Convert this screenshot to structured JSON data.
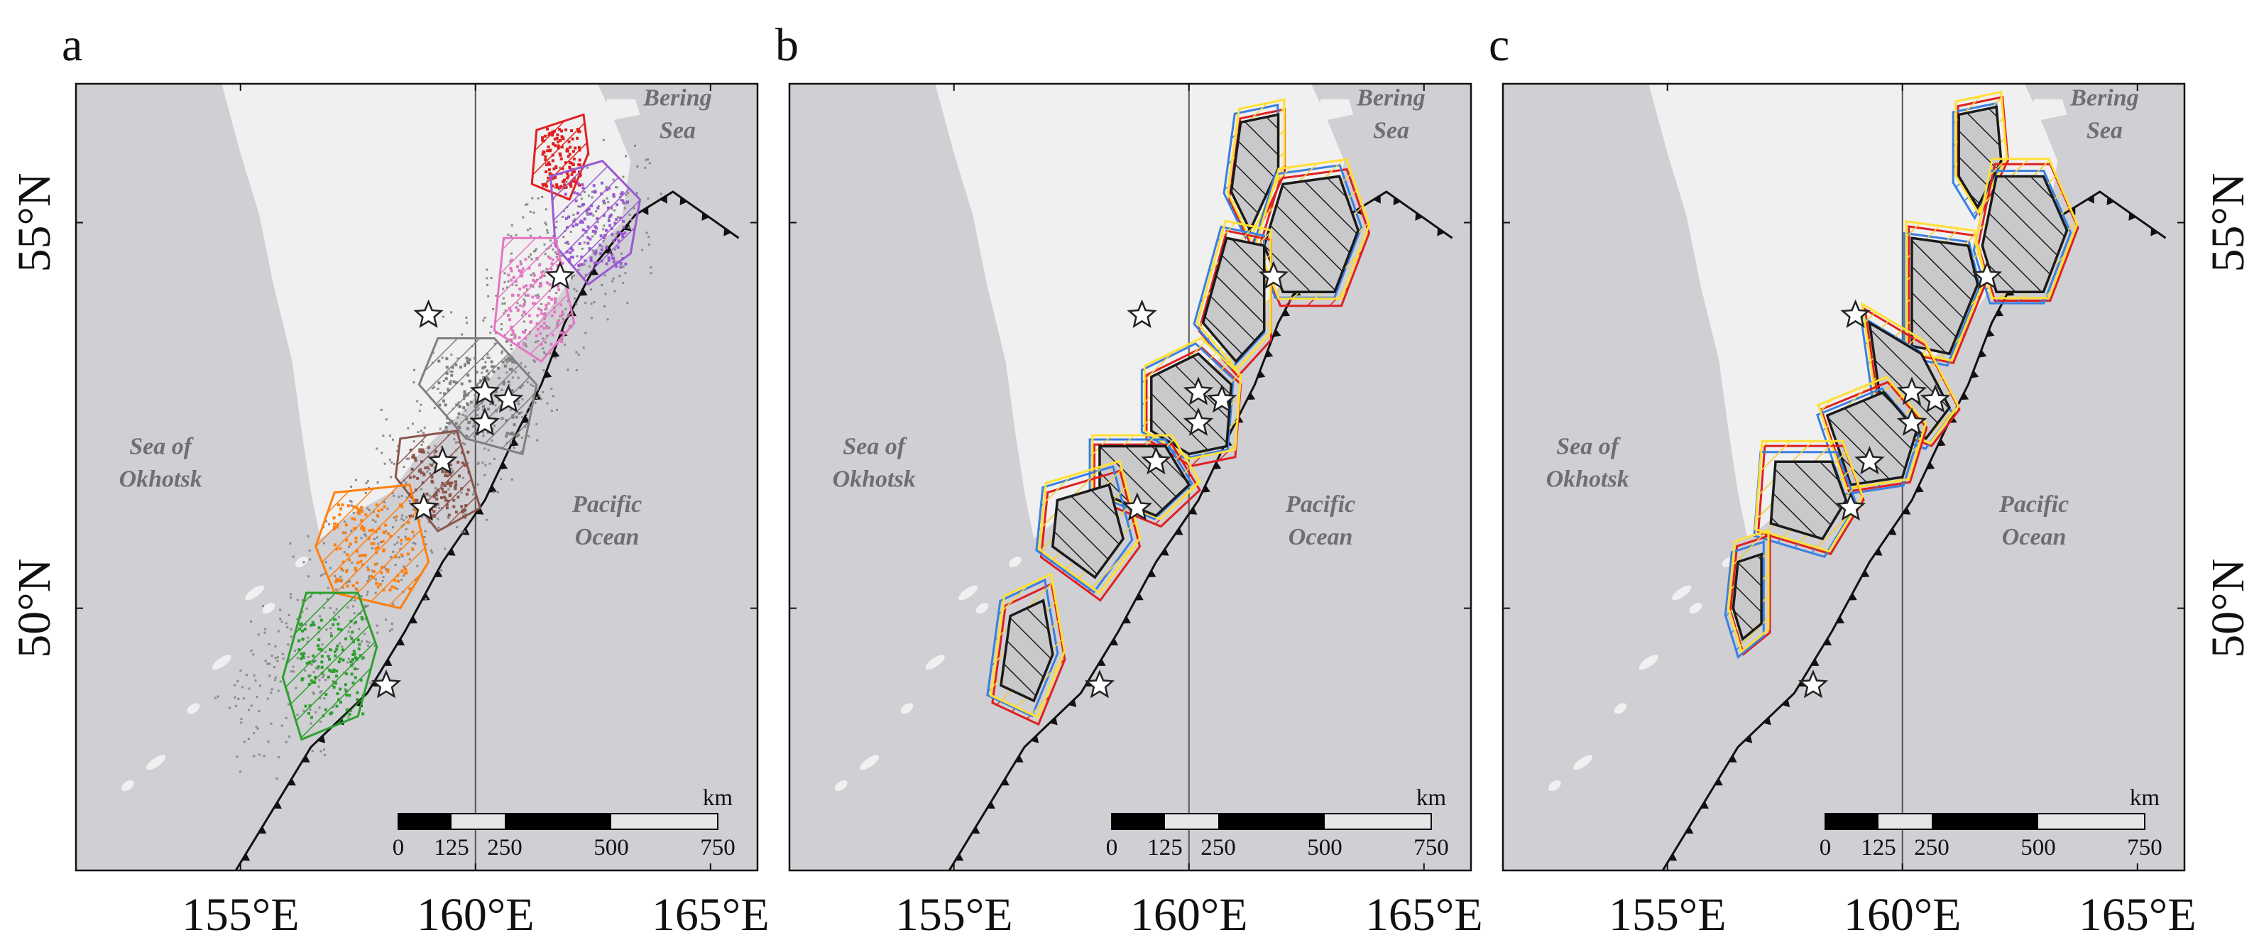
{
  "figure": {
    "panels": [
      {
        "id": "a",
        "letter": "a"
      },
      {
        "id": "b",
        "letter": "b"
      },
      {
        "id": "c",
        "letter": "c"
      }
    ],
    "longitude_ticks": [
      "155°E",
      "160°E",
      "165°E"
    ],
    "latitude_ticks": [
      "55°N",
      "50°N"
    ],
    "places": {
      "bering_line1": "Bering",
      "bering_line2": "Sea",
      "okhotsk_line1": "Sea of",
      "okhotsk_line2": "Okhotsk",
      "pacific_line1": "Pacific",
      "pacific_line2": "Ocean"
    },
    "scale_bar": {
      "unit": "km",
      "labels": [
        "0",
        "125",
        "250",
        "500",
        "750"
      ]
    },
    "extent": {
      "lon": [
        151.5,
        166
      ],
      "lat": [
        46.6,
        56.8
      ]
    },
    "colors": {
      "ocean": "#cfcfd4",
      "land": "#f0f0f0",
      "red": "#e02020",
      "purple": "#9b59d0",
      "pink": "#e377c2",
      "gray": "#7f7f7f",
      "brown": "#8c564b",
      "orange": "#ff7f0e",
      "green": "#2ca02c",
      "blue": "#3b7fe0",
      "yellow": "#ffe033",
      "black": "#1a1a1a"
    },
    "events": [
      {
        "lon": 158.1,
        "lat": 49.0
      },
      {
        "lon": 158.9,
        "lat": 51.3
      },
      {
        "lon": 159.3,
        "lat": 51.9
      },
      {
        "lon": 160.2,
        "lat": 52.4
      },
      {
        "lon": 160.2,
        "lat": 52.8
      },
      {
        "lon": 160.7,
        "lat": 52.7
      },
      {
        "lon": 159.0,
        "lat": 53.8
      },
      {
        "lon": 161.8,
        "lat": 54.3
      }
    ]
  }
}
